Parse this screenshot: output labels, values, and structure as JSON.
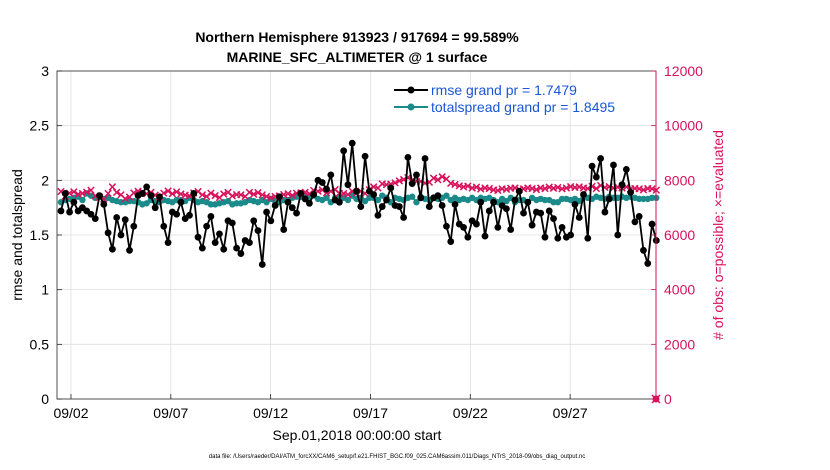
{
  "chart_data": {
    "type": "line",
    "title_line1": "Northern Hemisphere 913923 / 917694 = 99.589%",
    "title_line2": "MARINE_SFC_ALTIMETER @ 1 surface",
    "xlabel": "Sep.01,2018 00:00:00 start",
    "ylabel_left": "rmse and totalspread",
    "ylabel_right": "# of obs: o=possible; ×=evaluated",
    "footer": "data file: /Users/raeder/DAI/ATM_forcXX/CAM6_setup/f.e21.FHIST_BGC.f09_025.CAM6assim.011/Diags_NTrS_2018-09/obs_diag_output.nc",
    "x_ticks": [
      {
        "label": "09/02",
        "day": 2
      },
      {
        "label": "09/07",
        "day": 7
      },
      {
        "label": "09/12",
        "day": 12
      },
      {
        "label": "09/17",
        "day": 17
      },
      {
        "label": "09/22",
        "day": 22
      },
      {
        "label": "09/27",
        "day": 27
      }
    ],
    "xlim_days": [
      1.3,
      31.3
    ],
    "ylim_left": [
      0,
      3
    ],
    "yticks_left": [
      "0",
      "0.5",
      "1",
      "1.5",
      "2",
      "2.5",
      "3"
    ],
    "ylim_right": [
      0,
      12000
    ],
    "yticks_right": [
      "0",
      "2000",
      "4000",
      "6000",
      "8000",
      "10000",
      "12000"
    ],
    "grid": true,
    "legend_position": "top-right",
    "colors": {
      "rmse": "#000000",
      "totalspread": "#1a8a8a",
      "obs": "#d8125b",
      "legend_text": "#1a56d6"
    },
    "series": [
      {
        "name": "rmse grand pr = 1.7479",
        "axis": "left",
        "marker": "dot",
        "values": [
          1.72,
          1.88,
          1.71,
          1.8,
          1.72,
          1.75,
          1.72,
          1.69,
          1.65,
          1.86,
          1.78,
          1.52,
          1.37,
          1.66,
          1.5,
          1.64,
          1.36,
          1.58,
          1.86,
          1.88,
          1.94,
          1.86,
          1.75,
          1.85,
          1.58,
          1.43,
          1.71,
          1.69,
          1.8,
          1.65,
          1.68,
          1.88,
          1.48,
          1.38,
          1.58,
          1.67,
          1.43,
          1.51,
          1.37,
          1.63,
          1.61,
          1.38,
          1.33,
          1.45,
          1.43,
          1.63,
          1.54,
          1.23,
          1.71,
          1.63,
          1.77,
          1.85,
          1.55,
          1.8,
          1.75,
          1.7,
          1.88,
          1.83,
          1.79,
          1.87,
          2.0,
          1.98,
          1.92,
          2.05,
          1.82,
          1.8,
          2.27,
          1.96,
          2.34,
          1.9,
          1.76,
          2.22,
          1.9,
          1.87,
          1.68,
          1.76,
          1.82,
          1.93,
          1.77,
          1.76,
          1.66,
          2.21,
          1.97,
          2.05,
          1.84,
          2.2,
          1.76,
          1.84,
          1.86,
          1.77,
          1.58,
          1.44,
          1.78,
          1.6,
          1.57,
          1.48,
          1.63,
          1.6,
          1.8,
          1.49,
          1.72,
          1.8,
          1.57,
          1.77,
          1.74,
          1.55,
          1.82,
          1.9,
          1.7,
          1.8,
          1.59,
          1.71,
          1.7,
          1.48,
          1.72,
          1.65,
          1.47,
          1.57,
          1.48,
          1.5,
          1.78,
          1.66,
          1.87,
          1.47,
          2.13,
          2.03,
          2.2,
          1.71,
          1.83,
          2.14,
          1.5,
          1.96,
          2.1,
          1.89,
          1.62,
          1.67,
          1.36,
          1.24,
          1.6,
          1.45
        ]
      },
      {
        "name": "totalspread grand pr = 1.8495",
        "axis": "left",
        "marker": "dot",
        "values": [
          1.8,
          1.82,
          1.83,
          1.84,
          1.85,
          1.82,
          1.88,
          1.86,
          1.84,
          1.85,
          1.83,
          1.84,
          1.82,
          1.81,
          1.8,
          1.8,
          1.81,
          1.81,
          1.8,
          1.78,
          1.79,
          1.82,
          1.81,
          1.8,
          1.82,
          1.81,
          1.8,
          1.82,
          1.82,
          1.81,
          1.84,
          1.82,
          1.8,
          1.81,
          1.8,
          1.78,
          1.78,
          1.79,
          1.8,
          1.81,
          1.78,
          1.79,
          1.79,
          1.8,
          1.82,
          1.81,
          1.8,
          1.82,
          1.8,
          1.83,
          1.81,
          1.8,
          1.82,
          1.82,
          1.84,
          1.85,
          1.85,
          1.85,
          1.85,
          1.86,
          1.83,
          1.82,
          1.84,
          1.8,
          1.84,
          1.85,
          1.84,
          1.82,
          1.86,
          1.83,
          1.84,
          1.81,
          1.84,
          1.84,
          1.82,
          1.86,
          1.84,
          1.8,
          1.84,
          1.83,
          1.82,
          1.84,
          1.85,
          1.8,
          1.85,
          1.83,
          1.82,
          1.84,
          1.83,
          1.84,
          1.86,
          1.82,
          1.84,
          1.82,
          1.83,
          1.82,
          1.84,
          1.82,
          1.84,
          1.83,
          1.84,
          1.82,
          1.8,
          1.83,
          1.81,
          1.84,
          1.8,
          1.82,
          1.82,
          1.8,
          1.84,
          1.82,
          1.83,
          1.82,
          1.82,
          1.8,
          1.8,
          1.83,
          1.83,
          1.82,
          1.83,
          1.81,
          1.84,
          1.84,
          1.83,
          1.85,
          1.84,
          1.83,
          1.85,
          1.84,
          1.84,
          1.85,
          1.84,
          1.85,
          1.84,
          1.83,
          1.83,
          1.83,
          1.84,
          1.84
        ]
      },
      {
        "name": "evaluated obs",
        "axis": "right",
        "marker": "cross",
        "values": [
          7590,
          7420,
          7530,
          7580,
          7490,
          7520,
          7570,
          7640,
          7430,
          7380,
          7310,
          7520,
          7760,
          7560,
          7470,
          7330,
          7390,
          7540,
          7600,
          7580,
          7510,
          7560,
          7460,
          7390,
          7530,
          7610,
          7510,
          7580,
          7500,
          7460,
          7430,
          7540,
          7590,
          7470,
          7410,
          7530,
          7440,
          7370,
          7500,
          7560,
          7430,
          7480,
          7470,
          7410,
          7560,
          7490,
          7550,
          7470,
          7410,
          7360,
          7410,
          7430,
          7480,
          7510,
          7450,
          7530,
          7540,
          7560,
          7510,
          7630,
          7600,
          7650,
          7540,
          7600,
          7660,
          7530,
          7520,
          7480,
          7600,
          7530,
          7600,
          7520,
          7660,
          7760,
          7720,
          7870,
          7840,
          7860,
          7910,
          7980,
          8030,
          8100,
          8010,
          7960,
          7960,
          7900,
          7930,
          8080,
          8020,
          8130,
          8050,
          7890,
          7850,
          7800,
          7760,
          7790,
          7720,
          7750,
          7680,
          7720,
          7700,
          7650,
          7630,
          7690,
          7670,
          7710,
          7720,
          7670,
          7690,
          7720,
          7700,
          7660,
          7720,
          7700,
          7750,
          7710,
          7740,
          7690,
          7720,
          7770,
          7740,
          7760,
          7720,
          7700,
          7780,
          7700,
          7810,
          7740,
          7770,
          7720,
          7750,
          7720,
          7760,
          7690,
          7700,
          7690,
          7650,
          7700,
          7690,
          7640
        ]
      }
    ],
    "possible_obs_value": 0
  }
}
